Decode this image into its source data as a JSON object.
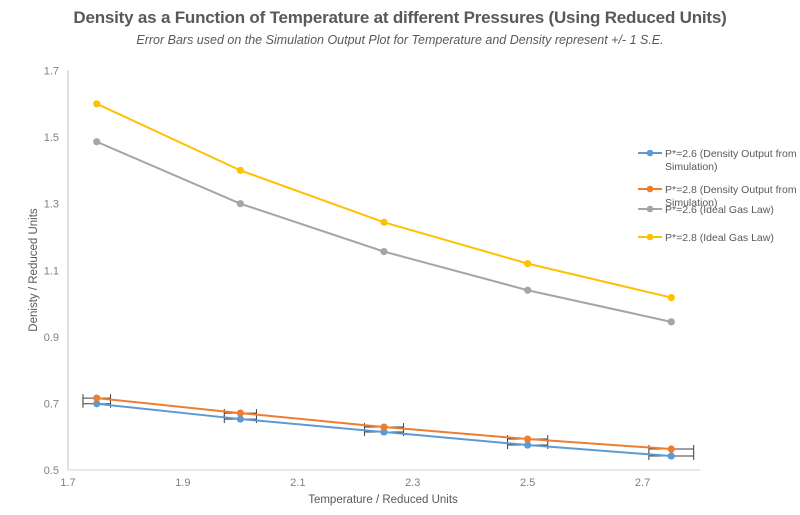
{
  "chart_data": {
    "type": "line",
    "title": "Density as a Function of Temperature at different Pressures (Using Reduced Units)",
    "subtitle": "Error Bars used on the Simulation Output Plot for Temperature and Density represent +/- 1 S.E.",
    "xlabel": "Temperature / Reduced Units",
    "ylabel": "Denisty / Reduced Units",
    "xlim": [
      1.7,
      2.8
    ],
    "ylim": [
      0.5,
      1.7
    ],
    "xticks": [
      "1.7",
      "1.9",
      "2.1",
      "2.3",
      "2.5",
      "2.7"
    ],
    "yticks": [
      "0.5",
      "0.7",
      "0.9",
      "1.1",
      "1.3",
      "1.5",
      "1.7"
    ],
    "grid": false,
    "legend_position": "right",
    "x": [
      1.75,
      2.0,
      2.25,
      2.5,
      2.75
    ],
    "series": [
      {
        "name": "P*=2.6 (Density Output from Simulation)",
        "legend_lines": [
          "P*=2.6 (Density Output from",
          "Simulation)"
        ],
        "color": "#5b9bd5",
        "values": [
          0.699,
          0.653,
          0.614,
          0.575,
          0.542
        ],
        "x_error": [
          0.024,
          0.028,
          0.034,
          0.035,
          0.039
        ]
      },
      {
        "name": "P*=2.8 (Density Output from Simulation)",
        "legend_lines": [
          "P*=2.8 (Density Output from",
          "Simulation)"
        ],
        "color": "#ed7d31",
        "values": [
          0.716,
          0.671,
          0.629,
          0.593,
          0.563
        ],
        "x_error": [
          0.024,
          0.028,
          0.034,
          0.035,
          0.039
        ]
      },
      {
        "name": "P*=2.6 (Ideal Gas Law)",
        "legend_lines": [
          "P*=2.6 (Ideal Gas Law)"
        ],
        "color": "#a5a5a5",
        "values": [
          1.486,
          1.3,
          1.156,
          1.04,
          0.945
        ]
      },
      {
        "name": "P*=2.8 (Ideal Gas Law)",
        "legend_lines": [
          "P*=2.8 (Ideal Gas Law)"
        ],
        "color": "#ffc000",
        "values": [
          1.6,
          1.4,
          1.244,
          1.12,
          1.018
        ]
      }
    ]
  }
}
